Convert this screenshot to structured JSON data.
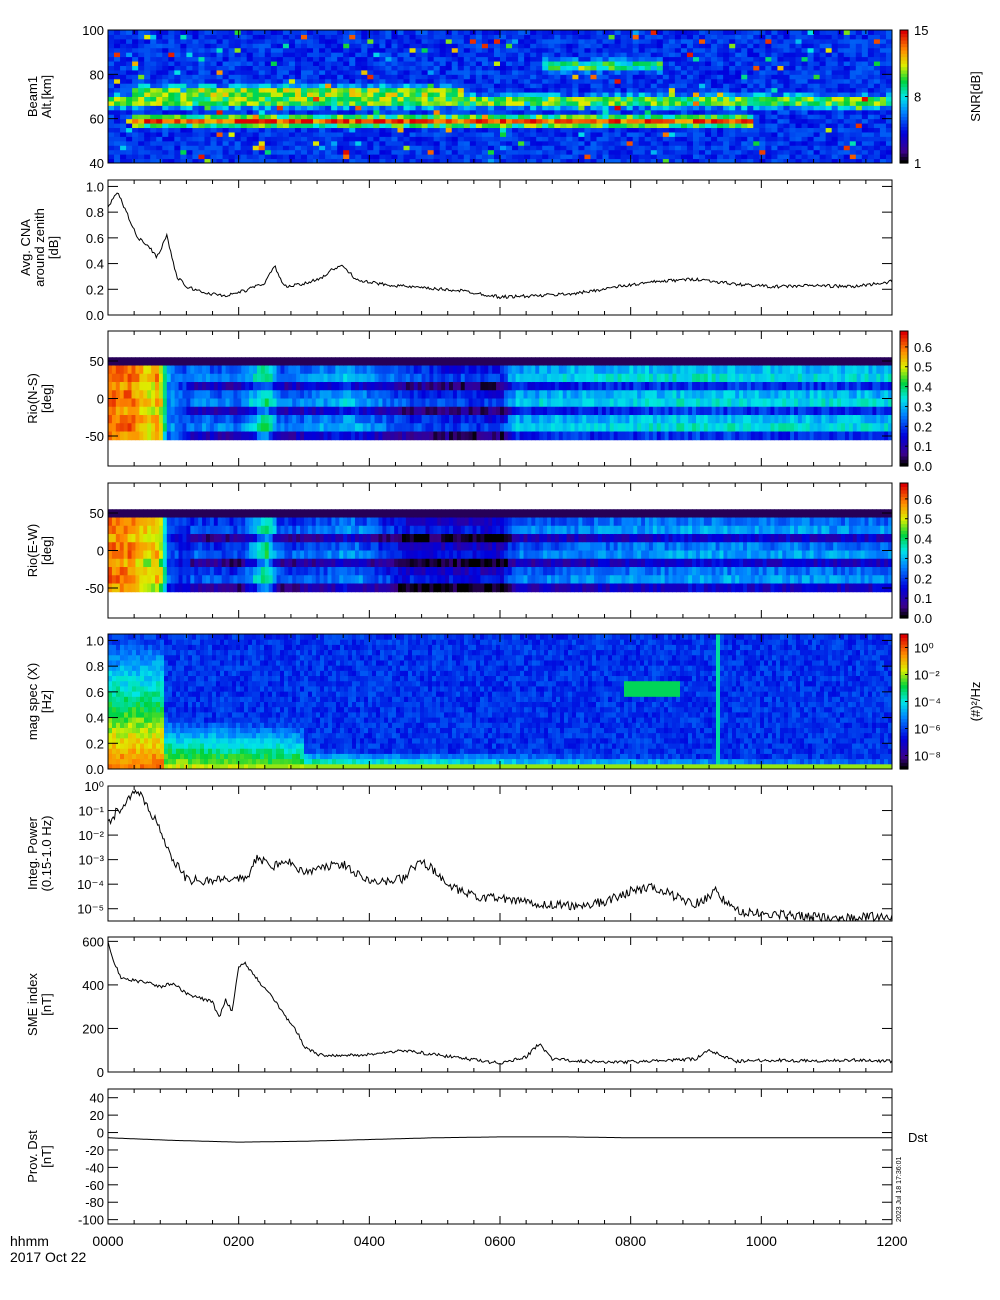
{
  "chart_data": [
    {
      "type": "heatmap",
      "ylabel": [
        "Beam1",
        "Alt.[km]"
      ],
      "yticks": [
        40,
        60,
        80,
        100
      ],
      "ylim": [
        40,
        100
      ],
      "colorbar": {
        "label": "SNR[dB]",
        "ticks": [
          "1",
          "8",
          "15"
        ],
        "range": [
          1,
          15
        ],
        "scale": "linear"
      },
      "features": [
        {
          "label": "",
          "alt_km": 59,
          "t_start": 0.03,
          "t_end": 0.82,
          "intensity": 0.8
        },
        {
          "label": "",
          "alt_km": 68,
          "t_start": 0.0,
          "t_end": 1.0,
          "intensity": 0.65
        },
        {
          "label": "",
          "alt_km": 72,
          "t_start": 0.03,
          "t_end": 0.45,
          "intensity": 0.7
        },
        {
          "label": "",
          "alt_km": 84,
          "t_start": 0.55,
          "t_end": 0.7,
          "intensity": 0.55
        }
      ]
    },
    {
      "type": "line",
      "ylabel": [
        "Avg. CNA",
        "around zenith",
        "[dB]"
      ],
      "yticks": [
        "0.0",
        "0.2",
        "0.4",
        "0.6",
        "0.8",
        "1.0"
      ],
      "ylim": [
        0,
        1.05
      ],
      "x": [
        0,
        15,
        30,
        45,
        60,
        75,
        90,
        105,
        120,
        150,
        180,
        210,
        240,
        255,
        270,
        300,
        330,
        345,
        360,
        375,
        390,
        420,
        480,
        540,
        600,
        660,
        720,
        780,
        840,
        900,
        960,
        1020,
        1080,
        1140,
        1200
      ],
      "y": [
        0.85,
        0.95,
        0.78,
        0.6,
        0.55,
        0.45,
        0.62,
        0.3,
        0.22,
        0.17,
        0.15,
        0.19,
        0.25,
        0.38,
        0.22,
        0.24,
        0.3,
        0.36,
        0.38,
        0.3,
        0.26,
        0.24,
        0.21,
        0.19,
        0.14,
        0.15,
        0.17,
        0.22,
        0.26,
        0.28,
        0.24,
        0.22,
        0.23,
        0.22,
        0.26
      ]
    },
    {
      "type": "heatmap",
      "ylabel": [
        "Rio(N-S)",
        "[deg]"
      ],
      "yticks": [
        -50,
        0,
        50
      ],
      "ylim": [
        -90,
        90
      ],
      "data_extent": [
        -55,
        55
      ],
      "colorbar": {
        "label": "",
        "ticks": [
          "0.0",
          "0.1",
          "0.2",
          "0.3",
          "0.4",
          "0.5",
          "0.6"
        ],
        "range": [
          0,
          0.68
        ],
        "scale": "linear"
      },
      "time_profile": {
        "x": [
          0,
          30,
          60,
          75,
          90,
          120,
          200,
          240,
          260,
          340,
          360,
          450,
          600,
          620,
          900,
          1200
        ],
        "y": [
          0.6,
          0.6,
          0.5,
          0.58,
          0.25,
          0.2,
          0.18,
          0.35,
          0.18,
          0.22,
          0.25,
          0.15,
          0.12,
          0.25,
          0.28,
          0.26
        ]
      }
    },
    {
      "type": "heatmap",
      "ylabel": [
        "Rio(E-W)",
        "[deg]"
      ],
      "yticks": [
        -50,
        0,
        50
      ],
      "ylim": [
        -90,
        90
      ],
      "data_extent": [
        -55,
        55
      ],
      "colorbar": {
        "label": "",
        "ticks": [
          "0.0",
          "0.1",
          "0.2",
          "0.3",
          "0.4",
          "0.5",
          "0.6"
        ],
        "range": [
          0,
          0.68
        ],
        "scale": "linear"
      },
      "time_profile": {
        "x": [
          0,
          30,
          60,
          75,
          90,
          120,
          200,
          240,
          260,
          340,
          360,
          450,
          600,
          620,
          900,
          1200
        ],
        "y": [
          0.6,
          0.58,
          0.5,
          0.55,
          0.2,
          0.16,
          0.14,
          0.35,
          0.15,
          0.18,
          0.22,
          0.1,
          0.08,
          0.18,
          0.22,
          0.2
        ]
      }
    },
    {
      "type": "heatmap",
      "ylabel": [
        "mag spec (X)",
        "[Hz]"
      ],
      "yticks": [
        "0.0",
        "0.2",
        "0.4",
        "0.6",
        "0.8",
        "1.0"
      ],
      "ylim": [
        0,
        1.05
      ],
      "colorbar": {
        "label": "(#)²/Hz",
        "ticks": [
          "10⁻⁸",
          "10⁻⁶",
          "10⁻⁴",
          "10⁻²",
          "10⁰"
        ],
        "range": [
          -9,
          1
        ],
        "scale": "log"
      },
      "features": [
        {
          "label": "",
          "t_center": 830,
          "f_center": 0.64,
          "intensity": 0.6
        },
        {
          "label": "",
          "t": 930,
          "f_max": 1.0,
          "intensity": 0.5
        }
      ]
    },
    {
      "type": "line",
      "ylabel": [
        "Integ. Power",
        "(0.15-1.0 Hz)"
      ],
      "yscale": "log",
      "yticks": [
        "10⁻⁵",
        "10⁻⁴",
        "10⁻³",
        "10⁻²",
        "10⁻¹",
        "10⁰"
      ],
      "ylim": [
        -5.5,
        0
      ],
      "x": [
        0,
        15,
        30,
        45,
        60,
        80,
        100,
        120,
        150,
        180,
        210,
        230,
        250,
        270,
        300,
        330,
        360,
        390,
        420,
        450,
        480,
        500,
        520,
        560,
        600,
        660,
        720,
        760,
        800,
        830,
        870,
        900,
        930,
        960,
        1000,
        1060,
        1120,
        1200
      ],
      "y": [
        -1.5,
        -1.0,
        -0.6,
        -0.2,
        -0.8,
        -1.8,
        -3.0,
        -3.8,
        -3.9,
        -3.7,
        -3.8,
        -2.9,
        -3.3,
        -3.0,
        -3.5,
        -3.3,
        -3.2,
        -3.7,
        -3.9,
        -3.8,
        -3.0,
        -3.5,
        -4.1,
        -4.5,
        -4.6,
        -4.8,
        -4.9,
        -4.7,
        -4.3,
        -4.1,
        -4.5,
        -4.8,
        -4.3,
        -5.1,
        -5.2,
        -5.3,
        -5.4,
        -5.3
      ]
    },
    {
      "type": "line",
      "ylabel": [
        "SME index",
        "[nT]"
      ],
      "yticks": [
        0,
        200,
        400,
        600
      ],
      "ylim": [
        0,
        620
      ],
      "x": [
        0,
        10,
        20,
        40,
        60,
        80,
        100,
        120,
        140,
        160,
        170,
        180,
        190,
        200,
        210,
        230,
        250,
        270,
        290,
        300,
        320,
        360,
        400,
        450,
        500,
        550,
        600,
        640,
        660,
        680,
        720,
        780,
        840,
        900,
        920,
        960,
        1020,
        1080,
        1140,
        1200
      ],
      "y": [
        600,
        500,
        430,
        420,
        410,
        390,
        410,
        360,
        340,
        320,
        250,
        330,
        280,
        480,
        500,
        420,
        350,
        260,
        180,
        120,
        80,
        75,
        80,
        100,
        80,
        60,
        40,
        70,
        130,
        60,
        50,
        45,
        50,
        60,
        100,
        50,
        55,
        50,
        55,
        50
      ]
    },
    {
      "type": "line",
      "ylabel": [
        "Prov. Dst",
        "[nT]"
      ],
      "yticks": [
        -100,
        -80,
        -60,
        -40,
        -20,
        0,
        20,
        40
      ],
      "ylim": [
        -105,
        50
      ],
      "legend": "Dst",
      "x": [
        0,
        100,
        200,
        300,
        400,
        500,
        600,
        700,
        800,
        900,
        1000,
        1100,
        1200
      ],
      "y": [
        -6,
        -9,
        -11,
        -10,
        -8,
        -6,
        -5,
        -5,
        -6,
        -6,
        -6,
        -6,
        -6
      ]
    }
  ],
  "xaxis": {
    "ticks": [
      "0000",
      "0200",
      "0400",
      "0600",
      "0800",
      "1000",
      "1200"
    ],
    "xlim": [
      0,
      1200
    ],
    "label_top": "hhmm",
    "label_bottom": "2017 Oct 22"
  },
  "side_note": "2023 Jul 18 17:36:01"
}
